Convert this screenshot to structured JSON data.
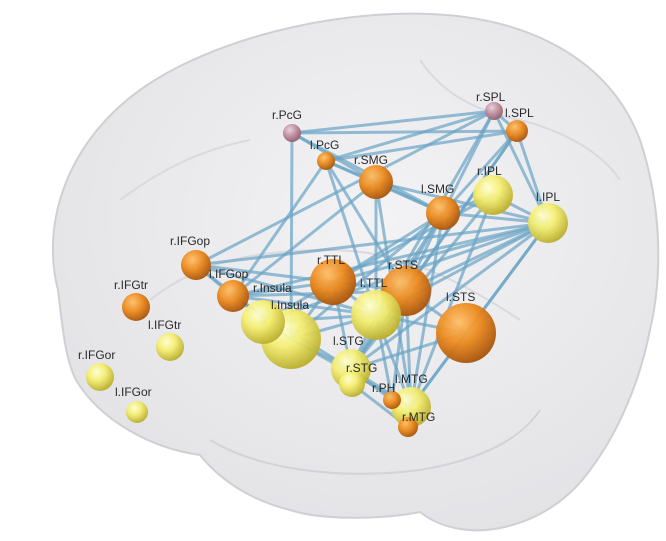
{
  "colors": {
    "background": "#ffffff",
    "brain_fill": "#e7e7ea",
    "brain_outline": "#cfcfd4",
    "edge": "#6aa4c4",
    "label": "#2a2a2a"
  },
  "nodes": [
    {
      "id": "r.PcG",
      "label": "r.PcG",
      "color": "pink"
    },
    {
      "id": "r.SPL",
      "label": "r.SPL",
      "color": "pink"
    },
    {
      "id": "l.SPL",
      "label": "l.SPL",
      "color": "orange"
    },
    {
      "id": "l.PcG",
      "label": "l.PcG",
      "color": "orange"
    },
    {
      "id": "r.SMG",
      "label": "r.SMG",
      "color": "orange"
    },
    {
      "id": "r.IPL",
      "label": "r.IPL",
      "color": "yellow"
    },
    {
      "id": "l.IPL",
      "label": "l.IPL",
      "color": "yellow"
    },
    {
      "id": "l.SMG",
      "label": "l.SMG",
      "color": "orange"
    },
    {
      "id": "r.IFGop",
      "label": "r.IFGop",
      "color": "orange"
    },
    {
      "id": "l.IFGop",
      "label": "l.IFGop",
      "color": "orange"
    },
    {
      "id": "r.TTL",
      "label": "r.TTL",
      "color": "orange"
    },
    {
      "id": "r.STS",
      "label": "r.STS",
      "color": "orange"
    },
    {
      "id": "r.Insula",
      "label": "r.Insula",
      "color": "yellow"
    },
    {
      "id": "l.Insula",
      "label": "l.Insula",
      "color": "yellow"
    },
    {
      "id": "l.TTL",
      "label": "l.TTL",
      "color": "yellow"
    },
    {
      "id": "l.STS",
      "label": "l.STS",
      "color": "orange"
    },
    {
      "id": "r.IFGtr",
      "label": "r.IFGtr",
      "color": "orange"
    },
    {
      "id": "l.IFGtr",
      "label": "l.IFGtr",
      "color": "yellow"
    },
    {
      "id": "r.IFGor",
      "label": "r.IFGor",
      "color": "yellow"
    },
    {
      "id": "l.IFGor",
      "label": "l.IFGor",
      "color": "yellow"
    },
    {
      "id": "l.STG",
      "label": "l.STG",
      "color": "yellow"
    },
    {
      "id": "r.STG",
      "label": "r.STG",
      "color": "yellow"
    },
    {
      "id": "r.PH",
      "label": "r.PH",
      "color": "orange"
    },
    {
      "id": "l.MTG",
      "label": "l.MTG",
      "color": "yellow"
    },
    {
      "id": "r.MTG",
      "label": "r.MTG",
      "color": "orange"
    }
  ],
  "edges": [
    [
      "r.PcG",
      "r.SPL"
    ],
    [
      "r.PcG",
      "l.SPL"
    ],
    [
      "r.PcG",
      "r.SMG"
    ],
    [
      "r.PcG",
      "l.SMG"
    ],
    [
      "r.PcG",
      "l.Insula"
    ],
    [
      "r.SPL",
      "l.SPL"
    ],
    [
      "r.SPL",
      "l.PcG"
    ],
    [
      "r.SPL",
      "l.SMG"
    ],
    [
      "r.SPL",
      "l.IPL"
    ],
    [
      "r.SPL",
      "l.TTL"
    ],
    [
      "r.SPL",
      "r.IFGop"
    ],
    [
      "l.SPL",
      "l.PcG"
    ],
    [
      "l.SPL",
      "l.IPL"
    ],
    [
      "l.SPL",
      "l.SMG"
    ],
    [
      "l.SPL",
      "l.STG"
    ],
    [
      "l.SPL",
      "r.STS"
    ],
    [
      "l.PcG",
      "r.SMG"
    ],
    [
      "l.PcG",
      "l.SMG"
    ],
    [
      "l.PcG",
      "l.IFGop"
    ],
    [
      "l.PcG",
      "l.TTL"
    ],
    [
      "l.PcG",
      "r.STS"
    ],
    [
      "r.SMG",
      "l.SMG"
    ],
    [
      "r.SMG",
      "l.IPL"
    ],
    [
      "r.SMG",
      "l.TTL"
    ],
    [
      "r.SMG",
      "l.IFGop"
    ],
    [
      "r.SMG",
      "l.MTG"
    ],
    [
      "r.IPL",
      "l.IPL"
    ],
    [
      "r.IPL",
      "l.SMG"
    ],
    [
      "r.IPL",
      "l.STG"
    ],
    [
      "r.IPL",
      "l.MTG"
    ],
    [
      "r.IPL",
      "r.TTL"
    ],
    [
      "l.IPL",
      "l.SMG"
    ],
    [
      "l.IPL",
      "r.IFGop"
    ],
    [
      "l.IPL",
      "l.IFGop"
    ],
    [
      "l.IPL",
      "r.Insula"
    ],
    [
      "l.IPL",
      "l.TTL"
    ],
    [
      "l.IPL",
      "l.STS"
    ],
    [
      "l.IPL",
      "r.STS"
    ],
    [
      "l.IPL",
      "l.MTG"
    ],
    [
      "l.IPL",
      "l.STG"
    ],
    [
      "l.IPL",
      "r.TTL"
    ],
    [
      "l.SMG",
      "l.TTL"
    ],
    [
      "l.SMG",
      "r.TTL"
    ],
    [
      "l.SMG",
      "r.STS"
    ],
    [
      "l.SMG",
      "l.STG"
    ],
    [
      "l.SMG",
      "l.MTG"
    ],
    [
      "l.SMG",
      "l.Insula"
    ],
    [
      "r.IFGop",
      "l.IFGop"
    ],
    [
      "r.IFGop",
      "r.TTL"
    ],
    [
      "r.IFGop",
      "l.Insula"
    ],
    [
      "r.IFGop",
      "l.TTL"
    ],
    [
      "l.IFGop",
      "r.TTL"
    ],
    [
      "l.IFGop",
      "l.TTL"
    ],
    [
      "l.IFGop",
      "l.Insula"
    ],
    [
      "l.IFGop",
      "r.STS"
    ],
    [
      "l.IFGop",
      "l.STG"
    ],
    [
      "r.TTL",
      "l.TTL"
    ],
    [
      "r.TTL",
      "r.STS"
    ],
    [
      "r.TTL",
      "l.Insula"
    ],
    [
      "r.TTL",
      "l.STG"
    ],
    [
      "r.TTL",
      "r.Insula"
    ],
    [
      "r.STS",
      "l.TTL"
    ],
    [
      "r.STS",
      "l.STS"
    ],
    [
      "r.STS",
      "l.STG"
    ],
    [
      "r.STS",
      "l.MTG"
    ],
    [
      "r.STS",
      "r.PH"
    ],
    [
      "l.TTL",
      "l.STS"
    ],
    [
      "l.TTL",
      "l.STG"
    ],
    [
      "l.TTL",
      "l.MTG"
    ],
    [
      "l.TTL",
      "l.Insula"
    ],
    [
      "l.TTL",
      "r.Insula"
    ],
    [
      "l.TTL",
      "r.PH"
    ],
    [
      "l.STS",
      "l.MTG"
    ],
    [
      "l.STS",
      "l.STG"
    ],
    [
      "l.Insula",
      "l.STG"
    ],
    [
      "l.Insula",
      "r.Insula"
    ],
    [
      "l.Insula",
      "l.MTG"
    ],
    [
      "l.STG",
      "l.MTG"
    ],
    [
      "l.STG",
      "r.STG"
    ],
    [
      "l.STG",
      "r.PH"
    ],
    [
      "l.MTG",
      "r.MTG"
    ],
    [
      "l.MTG",
      "r.PH"
    ],
    [
      "r.STG",
      "r.MTG"
    ]
  ]
}
